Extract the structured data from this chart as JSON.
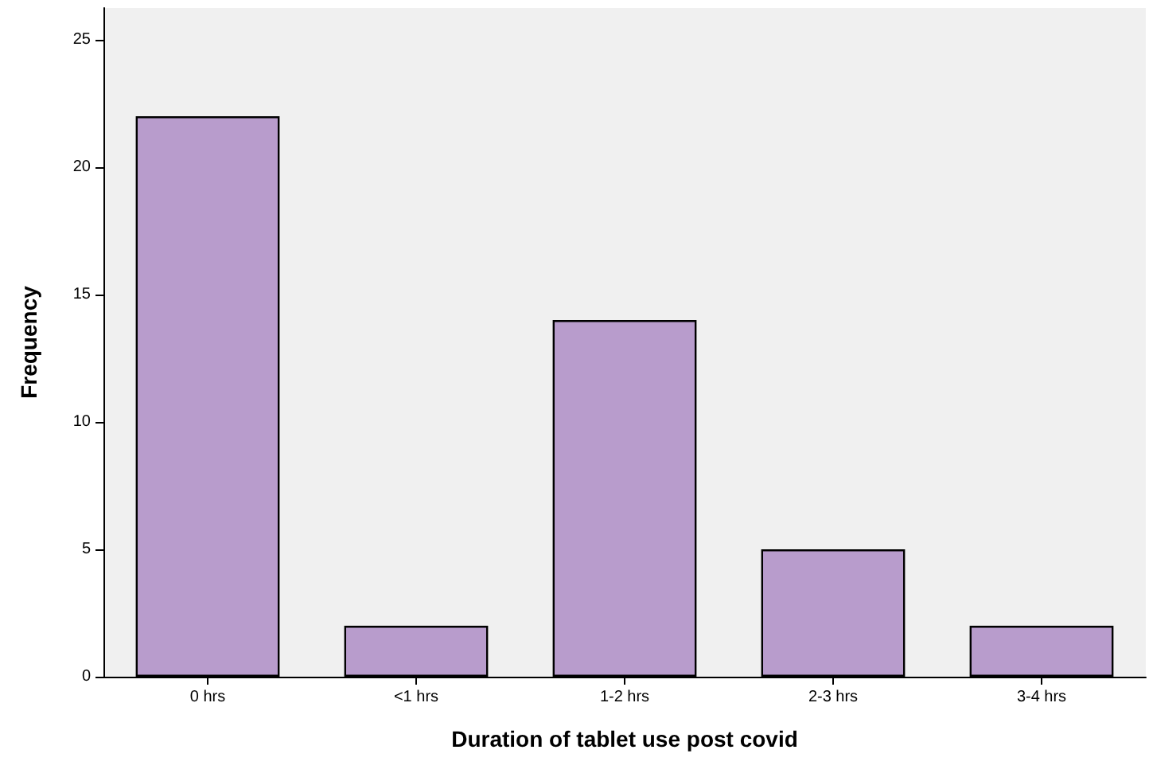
{
  "chart_data": {
    "type": "bar",
    "xlabel": "Duration of tablet use post covid",
    "ylabel": "Frequency",
    "categories": [
      "0 hrs",
      "<1 hrs",
      "1-2 hrs",
      "2-3 hrs",
      "3-4 hrs"
    ],
    "values": [
      22,
      2,
      14,
      5,
      2
    ],
    "color": "#b89ccc",
    "ylim": [
      0,
      26.25
    ],
    "yticks": [
      0,
      5,
      10,
      15,
      20,
      25
    ],
    "grid": false
  }
}
